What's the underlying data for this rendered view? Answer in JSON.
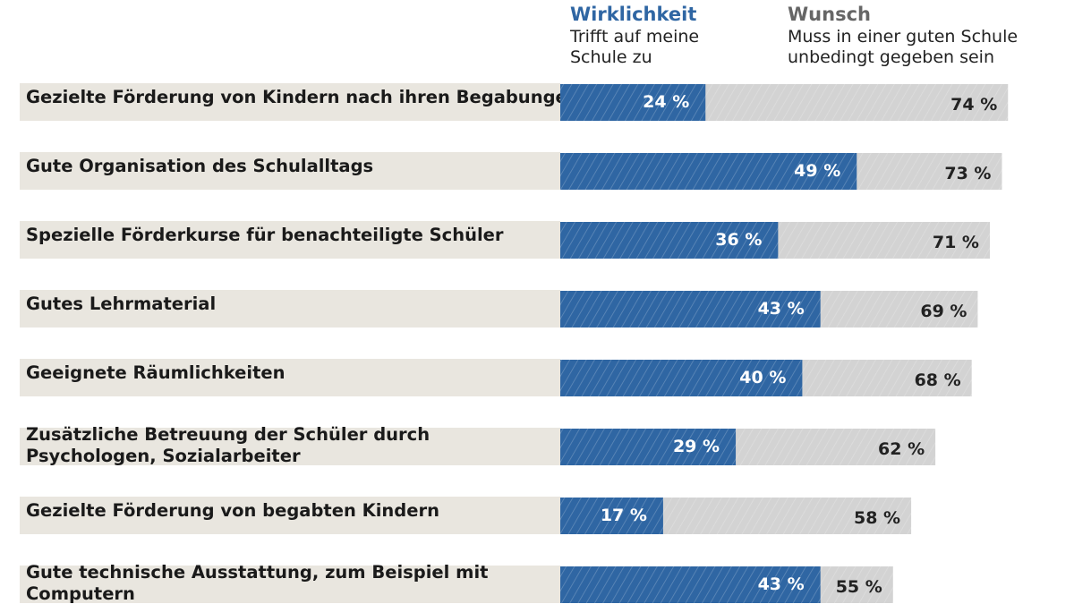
{
  "chart_data": {
    "type": "bar",
    "orientation": "horizontal",
    "overlay": true,
    "series": [
      {
        "name": "Wirklichkeit",
        "subtitle": "Trifft auf meine Schule zu",
        "color": "#2f66a3",
        "values": [
          24,
          49,
          36,
          43,
          40,
          29,
          17,
          43
        ]
      },
      {
        "name": "Wunsch",
        "subtitle": "Muss in einer guten Schule unbedingt gegeben sein",
        "color": "#d3d3d3",
        "values": [
          74,
          73,
          71,
          69,
          68,
          62,
          58,
          55
        ]
      }
    ],
    "categories": [
      [
        "Gezielte Förderung von Kindern nach ihren Begabungen"
      ],
      [
        "Gute Organisation des Schulalltags"
      ],
      [
        "Spezielle Förderkurse für benachteiligte Schüler"
      ],
      [
        "Gutes Lehrmaterial"
      ],
      [
        "Geeignete Räumlichkeiten"
      ],
      [
        "Zusätzliche Betreuung der Schüler durch",
        "Psychologen, Sozialarbeiter"
      ],
      [
        "Gezielte Förderung von begabten Kindern"
      ],
      [
        "Gute technische Ausstattung, zum Beispiel mit",
        "Computern"
      ]
    ],
    "unit": " %",
    "xlim": [
      0,
      100
    ],
    "label_background": "#e9e6df"
  }
}
